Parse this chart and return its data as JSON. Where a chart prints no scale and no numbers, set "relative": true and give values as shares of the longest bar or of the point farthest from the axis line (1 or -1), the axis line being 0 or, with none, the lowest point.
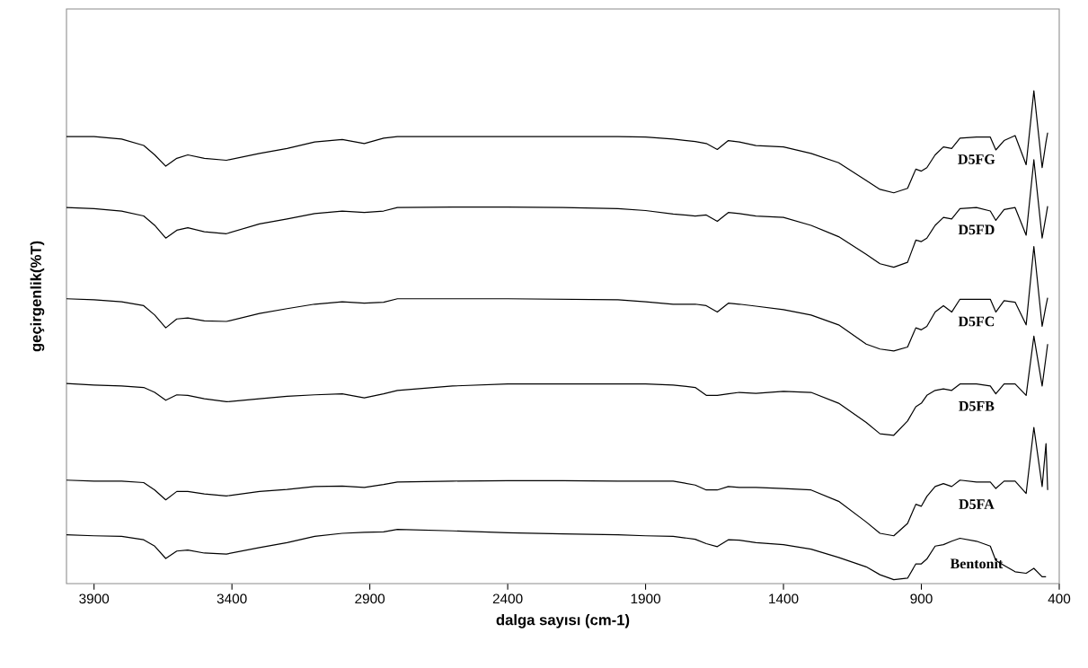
{
  "chart_data": {
    "type": "line",
    "xlabel": "dalga sayısı (cm-1)",
    "ylabel": "geçirgenlik(%T)",
    "relative": true,
    "legend": false,
    "marker": "none",
    "line_style": "solid",
    "xlim": [
      4000,
      400
    ],
    "xticks": [
      3900,
      3400,
      2900,
      2400,
      1900,
      1400,
      900,
      400
    ],
    "x": [
      4000,
      3900,
      3800,
      3720,
      3680,
      3640,
      3600,
      3560,
      3500,
      3420,
      3300,
      3200,
      3100,
      3000,
      2920,
      2850,
      2800,
      2600,
      2400,
      2200,
      2000,
      1900,
      1800,
      1720,
      1680,
      1640,
      1600,
      1560,
      1500,
      1400,
      1300,
      1200,
      1100,
      1050,
      1000,
      950,
      920,
      900,
      880,
      850,
      820,
      790,
      760,
      700,
      650,
      630,
      600,
      560,
      520,
      492,
      462,
      448,
      442
    ],
    "series": [
      {
        "name": "D5FG",
        "color": "#000000",
        "values": [
          0.907,
          0.907,
          0.902,
          0.889,
          0.87,
          0.847,
          0.863,
          0.87,
          0.863,
          0.859,
          0.873,
          0.883,
          0.896,
          0.901,
          0.893,
          0.904,
          0.907,
          0.907,
          0.907,
          0.907,
          0.907,
          0.906,
          0.902,
          0.897,
          0.893,
          0.881,
          0.899,
          0.896,
          0.889,
          0.886,
          0.873,
          0.854,
          0.818,
          0.8,
          0.793,
          0.802,
          0.841,
          0.837,
          0.844,
          0.87,
          0.886,
          0.883,
          0.904,
          0.906,
          0.906,
          0.88,
          0.899,
          0.909,
          0.85,
          1.0,
          0.844,
          0.896,
          0.915
        ]
      },
      {
        "name": "D5FD",
        "color": "#000000",
        "values": [
          0.763,
          0.761,
          0.756,
          0.746,
          0.727,
          0.701,
          0.717,
          0.722,
          0.714,
          0.71,
          0.73,
          0.74,
          0.751,
          0.756,
          0.753,
          0.756,
          0.763,
          0.764,
          0.764,
          0.763,
          0.761,
          0.757,
          0.75,
          0.746,
          0.748,
          0.735,
          0.753,
          0.751,
          0.746,
          0.743,
          0.727,
          0.704,
          0.668,
          0.649,
          0.642,
          0.652,
          0.697,
          0.694,
          0.701,
          0.727,
          0.743,
          0.74,
          0.761,
          0.763,
          0.756,
          0.737,
          0.759,
          0.763,
          0.707,
          0.86,
          0.701,
          0.746,
          0.766
        ]
      },
      {
        "name": "D5FC",
        "color": "#000000",
        "values": [
          0.578,
          0.576,
          0.572,
          0.564,
          0.545,
          0.519,
          0.537,
          0.539,
          0.533,
          0.532,
          0.548,
          0.558,
          0.567,
          0.572,
          0.569,
          0.571,
          0.578,
          0.578,
          0.578,
          0.577,
          0.576,
          0.572,
          0.567,
          0.567,
          0.564,
          0.551,
          0.569,
          0.567,
          0.563,
          0.556,
          0.545,
          0.525,
          0.486,
          0.476,
          0.472,
          0.48,
          0.519,
          0.515,
          0.522,
          0.551,
          0.564,
          0.551,
          0.577,
          0.577,
          0.577,
          0.551,
          0.574,
          0.571,
          0.525,
          0.684,
          0.522,
          0.564,
          0.58
        ]
      },
      {
        "name": "D5FB",
        "color": "#000000",
        "values": [
          0.406,
          0.403,
          0.401,
          0.398,
          0.388,
          0.372,
          0.383,
          0.382,
          0.375,
          0.369,
          0.375,
          0.38,
          0.383,
          0.385,
          0.377,
          0.385,
          0.392,
          0.401,
          0.405,
          0.405,
          0.405,
          0.405,
          0.403,
          0.398,
          0.382,
          0.382,
          0.385,
          0.388,
          0.386,
          0.39,
          0.388,
          0.366,
          0.327,
          0.304,
          0.301,
          0.33,
          0.359,
          0.366,
          0.382,
          0.392,
          0.395,
          0.392,
          0.405,
          0.405,
          0.401,
          0.385,
          0.405,
          0.405,
          0.382,
          0.502,
          0.401,
          0.46,
          0.486
        ]
      },
      {
        "name": "D5FA",
        "color": "#000000",
        "values": [
          0.21,
          0.208,
          0.208,
          0.205,
          0.19,
          0.17,
          0.187,
          0.187,
          0.182,
          0.178,
          0.187,
          0.191,
          0.197,
          0.198,
          0.195,
          0.201,
          0.206,
          0.208,
          0.209,
          0.209,
          0.208,
          0.208,
          0.208,
          0.2,
          0.19,
          0.19,
          0.197,
          0.195,
          0.195,
          0.193,
          0.19,
          0.167,
          0.125,
          0.102,
          0.097,
          0.122,
          0.161,
          0.157,
          0.177,
          0.197,
          0.203,
          0.197,
          0.21,
          0.206,
          0.206,
          0.193,
          0.208,
          0.208,
          0.183,
          0.317,
          0.197,
          0.284,
          0.19
        ]
      },
      {
        "name": "Bentonit",
        "color": "#000000",
        "values": [
          0.099,
          0.097,
          0.096,
          0.089,
          0.076,
          0.051,
          0.066,
          0.068,
          0.062,
          0.06,
          0.073,
          0.083,
          0.096,
          0.102,
          0.104,
          0.105,
          0.11,
          0.107,
          0.103,
          0.101,
          0.099,
          0.097,
          0.096,
          0.09,
          0.081,
          0.075,
          0.089,
          0.088,
          0.083,
          0.079,
          0.07,
          0.053,
          0.034,
          0.018,
          0.008,
          0.011,
          0.04,
          0.04,
          0.05,
          0.076,
          0.079,
          0.086,
          0.092,
          0.086,
          0.076,
          0.047,
          0.037,
          0.024,
          0.021,
          0.031,
          0.014,
          0.014,
          null
        ]
      }
    ]
  }
}
